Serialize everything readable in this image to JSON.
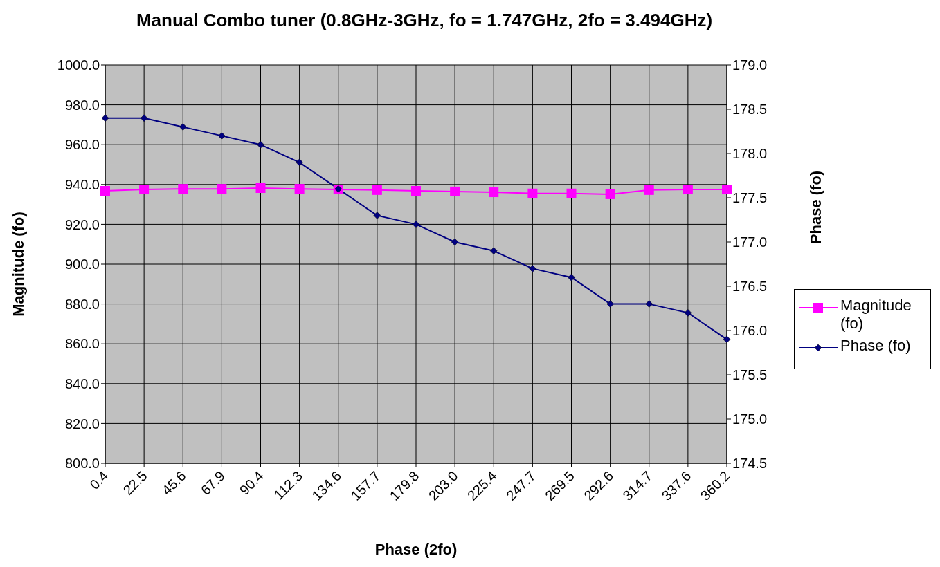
{
  "chart_data": {
    "type": "line",
    "title": "Manual Combo tuner (0.8GHz-3GHz, fo = 1.747GHz, 2fo = 3.494GHz)",
    "xlabel": "Phase (2fo)",
    "ylabel": "Magnitude (fo)",
    "y2label": "Phase (fo)",
    "categories": [
      "0.4",
      "22.5",
      "45.6",
      "67.9",
      "90.4",
      "112.3",
      "134.6",
      "157.7",
      "179.8",
      "203.0",
      "225.4",
      "247.7",
      "269.5",
      "292.6",
      "314.7",
      "337.6",
      "360.2"
    ],
    "series": [
      {
        "name": "Magnitude (fo)",
        "color": "#ff00ff",
        "marker": "square",
        "values": [
          936.8,
          937.5,
          937.8,
          937.8,
          938.2,
          937.8,
          937.5,
          937.2,
          936.8,
          936.5,
          936.1,
          935.5,
          935.5,
          935.1,
          937.2,
          937.5,
          937.5
        ]
      },
      {
        "name": "Phase (fo)",
        "color": "#000080",
        "marker": "diamond",
        "axis": "y2",
        "values": [
          178.4,
          178.4,
          178.3,
          178.2,
          178.1,
          177.9,
          177.6,
          177.3,
          177.2,
          177.0,
          176.9,
          176.7,
          176.6,
          176.3,
          176.3,
          176.2,
          175.9
        ]
      }
    ],
    "ylim": [
      800,
      1000
    ],
    "yticks": [
      {
        "value": 800,
        "label": "800.0"
      },
      {
        "value": 820,
        "label": "820.0"
      },
      {
        "value": 840,
        "label": "840.0"
      },
      {
        "value": 860,
        "label": "860.0"
      },
      {
        "value": 880,
        "label": "880.0"
      },
      {
        "value": 900,
        "label": "900.0"
      },
      {
        "value": 920,
        "label": "920.0"
      },
      {
        "value": 940,
        "label": "940.0"
      },
      {
        "value": 960,
        "label": "960.0"
      },
      {
        "value": 980,
        "label": "980.0"
      },
      {
        "value": 1000,
        "label": "1000.0"
      }
    ],
    "y2lim": [
      174.5,
      179
    ],
    "y2ticks": [
      174.5,
      {
        "value": 175,
        "label": "175.0"
      },
      175.5,
      {
        "value": 176,
        "label": "176.0"
      },
      176.5,
      {
        "value": 177,
        "label": "177.0"
      },
      177.5,
      {
        "value": 178,
        "label": "178.0"
      },
      178.5,
      {
        "value": 179,
        "label": "179.0"
      }
    ],
    "grid": true,
    "legend": "right",
    "line_style": "solid"
  }
}
